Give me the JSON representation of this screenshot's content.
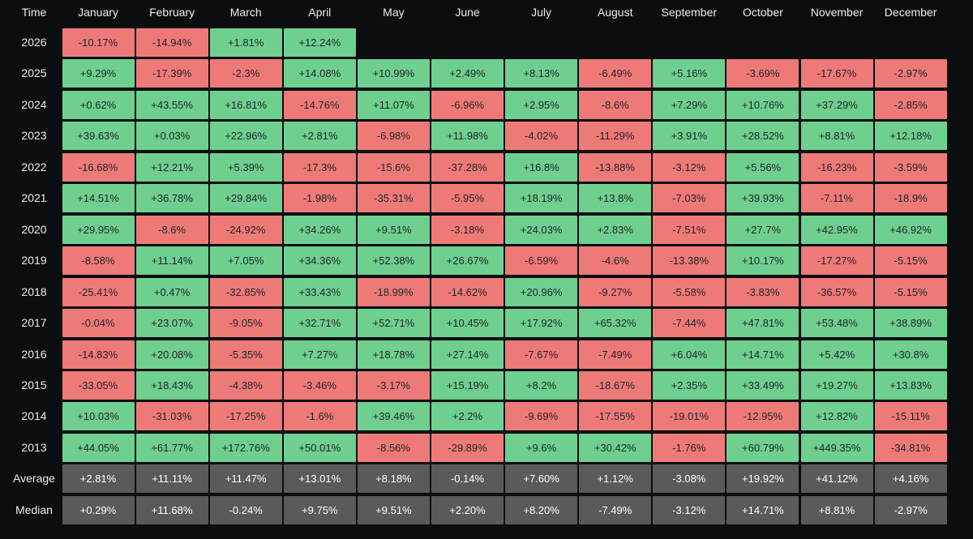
{
  "chart_data": {
    "type": "heatmap",
    "corner_label": "Time",
    "columns": [
      "January",
      "February",
      "March",
      "April",
      "May",
      "June",
      "July",
      "August",
      "September",
      "October",
      "November",
      "December"
    ],
    "colors": {
      "positive": "#6fcf8f",
      "negative": "#ee7a78",
      "summary": "#5a5a5a",
      "background": "#0b0e11"
    },
    "rows": [
      {
        "label": "2026",
        "values": [
          "-10.17%",
          "-14.94%",
          "+1.81%",
          "+12.24%",
          "",
          "",
          "",
          "",
          "",
          "",
          "",
          ""
        ]
      },
      {
        "label": "2025",
        "values": [
          "+9.29%",
          "-17.39%",
          "-2.3%",
          "+14.08%",
          "+10.99%",
          "+2.49%",
          "+8.13%",
          "-6.49%",
          "+5.16%",
          "-3.69%",
          "-17.67%",
          "-2.97%"
        ]
      },
      {
        "label": "2024",
        "values": [
          "+0.62%",
          "+43.55%",
          "+16.81%",
          "-14.76%",
          "+11.07%",
          "-6.96%",
          "+2.95%",
          "-8.6%",
          "+7.29%",
          "+10.76%",
          "+37.29%",
          "-2.85%"
        ]
      },
      {
        "label": "2023",
        "values": [
          "+39.63%",
          "+0.03%",
          "+22.96%",
          "+2.81%",
          "-6.98%",
          "+11.98%",
          "-4.02%",
          "-11.29%",
          "+3.91%",
          "+28.52%",
          "+8.81%",
          "+12.18%"
        ]
      },
      {
        "label": "2022",
        "values": [
          "-16.68%",
          "+12.21%",
          "+5.39%",
          "-17.3%",
          "-15.6%",
          "-37.28%",
          "+16.8%",
          "-13.88%",
          "-3.12%",
          "+5.56%",
          "-16.23%",
          "-3.59%"
        ]
      },
      {
        "label": "2021",
        "values": [
          "+14.51%",
          "+36.78%",
          "+29.84%",
          "-1.98%",
          "-35.31%",
          "-5.95%",
          "+18.19%",
          "+13.8%",
          "-7.03%",
          "+39.93%",
          "-7.11%",
          "-18.9%"
        ]
      },
      {
        "label": "2020",
        "values": [
          "+29.95%",
          "-8.6%",
          "-24.92%",
          "+34.26%",
          "+9.51%",
          "-3.18%",
          "+24.03%",
          "+2.83%",
          "-7.51%",
          "+27.7%",
          "+42.95%",
          "+46.92%"
        ]
      },
      {
        "label": "2019",
        "values": [
          "-8.58%",
          "+11.14%",
          "+7.05%",
          "+34.36%",
          "+52.38%",
          "+26.67%",
          "-6.59%",
          "-4.6%",
          "-13.38%",
          "+10.17%",
          "-17.27%",
          "-5.15%"
        ]
      },
      {
        "label": "2018",
        "values": [
          "-25.41%",
          "+0.47%",
          "-32.85%",
          "+33.43%",
          "-18.99%",
          "-14.62%",
          "+20.96%",
          "-9.27%",
          "-5.58%",
          "-3.83%",
          "-36.57%",
          "-5.15%"
        ]
      },
      {
        "label": "2017",
        "values": [
          "-0.04%",
          "+23.07%",
          "-9.05%",
          "+32.71%",
          "+52.71%",
          "+10.45%",
          "+17.92%",
          "+65.32%",
          "-7.44%",
          "+47.81%",
          "+53.48%",
          "+38.89%"
        ]
      },
      {
        "label": "2016",
        "values": [
          "-14.83%",
          "+20.08%",
          "-5.35%",
          "+7.27%",
          "+18.78%",
          "+27.14%",
          "-7.67%",
          "-7.49%",
          "+6.04%",
          "+14.71%",
          "+5.42%",
          "+30.8%"
        ]
      },
      {
        "label": "2015",
        "values": [
          "-33.05%",
          "+18.43%",
          "-4.38%",
          "-3.46%",
          "-3.17%",
          "+15.19%",
          "+8.2%",
          "-18.67%",
          "+2.35%",
          "+33.49%",
          "+19.27%",
          "+13.83%"
        ]
      },
      {
        "label": "2014",
        "values": [
          "+10.03%",
          "-31.03%",
          "-17.25%",
          "-1.6%",
          "+39.46%",
          "+2.2%",
          "-9.69%",
          "-17.55%",
          "-19.01%",
          "-12.95%",
          "+12.82%",
          "-15.11%"
        ]
      },
      {
        "label": "2013",
        "values": [
          "+44.05%",
          "+61.77%",
          "+172.76%",
          "+50.01%",
          "-8.56%",
          "-29.89%",
          "+9.6%",
          "+30.42%",
          "-1.76%",
          "+60.79%",
          "+449.35%",
          "-34.81%"
        ]
      },
      {
        "label": "Average",
        "summary": true,
        "values": [
          "+2.81%",
          "+11.11%",
          "+11.47%",
          "+13.01%",
          "+8.18%",
          "-0.14%",
          "+7.60%",
          "+1.12%",
          "-3.08%",
          "+19.92%",
          "+41.12%",
          "+4.16%"
        ]
      },
      {
        "label": "Median",
        "summary": true,
        "values": [
          "+0.29%",
          "+11.68%",
          "-0.24%",
          "+9.75%",
          "+9.51%",
          "+2.20%",
          "+8.20%",
          "-7.49%",
          "-3.12%",
          "+14.71%",
          "+8.81%",
          "-2.97%"
        ]
      }
    ]
  }
}
